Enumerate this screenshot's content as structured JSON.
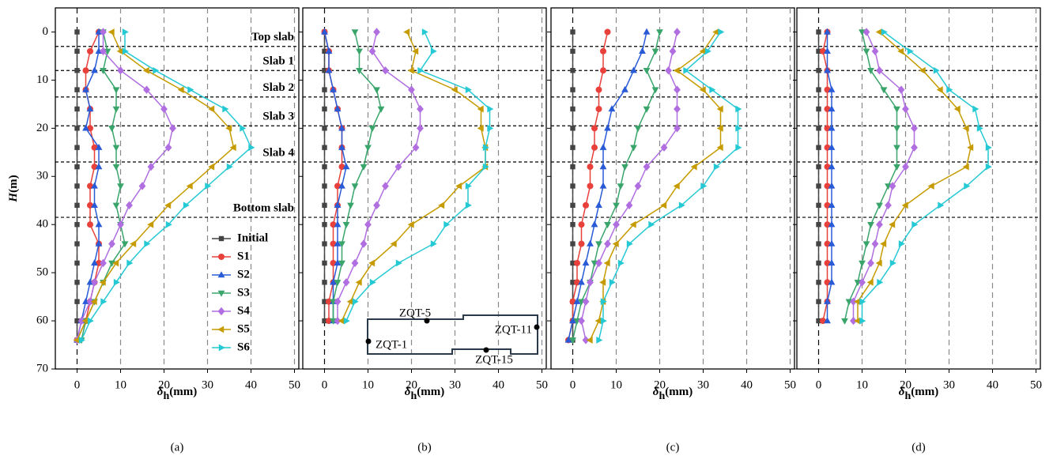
{
  "chart_data": [
    {
      "type": "line",
      "caption": "(a)",
      "x_label": {
        "symbol": "δ",
        "sub": "h",
        "unit": "(mm)"
      },
      "y_label": {
        "symbol": "H",
        "unit": "(m)"
      },
      "xlim": [
        -5,
        51
      ],
      "xticks": [
        0,
        10,
        20,
        30,
        40,
        50
      ],
      "ylim": [
        -5,
        70
      ],
      "yticks": [
        0,
        10,
        20,
        30,
        40,
        50,
        60,
        70
      ],
      "y_inverted": true,
      "ytick_labels": true,
      "grid": true,
      "legend": true,
      "legend_position": "lower left",
      "reference_lines": [
        {
          "value": 3,
          "label": "Top slab"
        },
        {
          "value": 8,
          "label": "Slab 1"
        },
        {
          "value": 13.5,
          "label": "Slab 2"
        },
        {
          "value": 19.5,
          "label": "Slab 3"
        },
        {
          "value": 27,
          "label": "Slab 4"
        },
        {
          "value": 38.5,
          "label": "Bottom slab"
        }
      ],
      "y": [
        0,
        4,
        8,
        12,
        16,
        20,
        24,
        28,
        32,
        36,
        40,
        44,
        48,
        52,
        56,
        60,
        64
      ],
      "series": [
        {
          "name": "Initial",
          "color": "#444444",
          "marker": "square",
          "values": [
            0,
            0,
            0,
            0,
            0,
            0,
            0,
            0,
            0,
            0,
            0,
            0,
            0,
            0,
            0,
            0,
            0
          ]
        },
        {
          "name": "S1",
          "color": "#e8413c",
          "marker": "circle",
          "values": [
            5,
            3,
            2,
            2,
            3,
            3,
            4,
            4,
            3,
            3,
            3,
            5,
            5,
            4,
            3,
            2,
            0
          ]
        },
        {
          "name": "S2",
          "color": "#2a5bd7",
          "marker": "triangle-up",
          "values": [
            5,
            5,
            4,
            2,
            3,
            2,
            5,
            5,
            4,
            4,
            5,
            5,
            4,
            3,
            2,
            1,
            0
          ]
        },
        {
          "name": "S3",
          "color": "#3aa56b",
          "marker": "triangle-down",
          "values": [
            6,
            7,
            6,
            9,
            9,
            8,
            9,
            9,
            10,
            9,
            10,
            11,
            8,
            6,
            4,
            2,
            1
          ]
        },
        {
          "name": "S4",
          "color": "#b06ee0",
          "marker": "diamond",
          "values": [
            6,
            6,
            10,
            16,
            20,
            22,
            21,
            17,
            15,
            12,
            10,
            8,
            6,
            4,
            3,
            1,
            0
          ]
        },
        {
          "name": "S5",
          "color": "#c69b00",
          "marker": "triangle-left",
          "values": [
            8,
            10,
            16,
            24,
            31,
            35,
            36,
            31,
            26,
            21,
            17,
            13,
            9,
            6,
            4,
            2,
            0
          ]
        },
        {
          "name": "S6",
          "color": "#25c9d4",
          "marker": "triangle-right",
          "values": [
            11,
            11,
            18,
            26,
            34,
            38,
            40,
            35,
            30,
            25,
            21,
            16,
            12,
            9,
            6,
            3,
            1
          ]
        }
      ]
    },
    {
      "type": "line",
      "caption": "(b)",
      "x_label": {
        "symbol": "δ",
        "sub": "h",
        "unit": "(mm)"
      },
      "xlim": [
        -5,
        51
      ],
      "xticks": [
        0,
        10,
        20,
        30,
        40,
        50
      ],
      "ylim": [
        -5,
        70
      ],
      "yticks": [
        0,
        10,
        20,
        30,
        40,
        50,
        60,
        70
      ],
      "y_inverted": true,
      "ytick_labels": false,
      "grid": true,
      "legend": false,
      "reference_lines": [
        {
          "value": 3
        },
        {
          "value": 8
        },
        {
          "value": 13.5
        },
        {
          "value": 19.5
        },
        {
          "value": 27
        },
        {
          "value": 38.5
        }
      ],
      "inset_labels": [
        "ZQT-5",
        "ZQT-11",
        "ZQT-1",
        "ZQT-15"
      ],
      "y": [
        0,
        4,
        8,
        12,
        16,
        20,
        24,
        28,
        32,
        36,
        40,
        44,
        48,
        52,
        56,
        60,
        64
      ],
      "series": [
        {
          "name": "Initial",
          "color": "#444444",
          "marker": "square",
          "values": [
            0,
            0,
            0,
            0,
            0,
            0,
            0,
            0,
            0,
            0,
            0,
            0,
            0,
            0,
            0,
            0,
            null
          ]
        },
        {
          "name": "S1",
          "color": "#e8413c",
          "marker": "circle",
          "values": [
            0,
            1,
            1,
            2,
            3,
            4,
            4,
            4,
            3,
            3,
            2,
            2,
            2,
            2,
            1,
            1,
            null
          ]
        },
        {
          "name": "S2",
          "color": "#2a5bd7",
          "marker": "triangle-up",
          "values": [
            0,
            1,
            1,
            2,
            3,
            4,
            4,
            5,
            4,
            3,
            3,
            3,
            3,
            2,
            2,
            2,
            null
          ]
        },
        {
          "name": "S3",
          "color": "#3aa56b",
          "marker": "triangle-down",
          "values": [
            7,
            8,
            8,
            12,
            13,
            11,
            10,
            9,
            7,
            6,
            5,
            4,
            4,
            3,
            2,
            2,
            null
          ]
        },
        {
          "name": "S4",
          "color": "#b06ee0",
          "marker": "diamond",
          "values": [
            12,
            11,
            14,
            20,
            22,
            22,
            21,
            17,
            14,
            12,
            10,
            9,
            7,
            5,
            3,
            3,
            null
          ]
        },
        {
          "name": "S5",
          "color": "#c69b00",
          "marker": "triangle-left",
          "values": [
            19,
            21,
            20,
            30,
            36,
            36,
            37,
            37,
            31,
            27,
            20,
            16,
            11,
            8,
            6,
            4,
            null
          ]
        },
        {
          "name": "S6",
          "color": "#25c9d4",
          "marker": "triangle-right",
          "values": [
            23,
            25,
            22,
            33,
            38,
            38,
            37,
            37,
            33,
            33,
            28,
            25,
            17,
            11,
            7,
            5,
            null
          ]
        }
      ]
    },
    {
      "type": "line",
      "caption": "(c)",
      "x_label": {
        "symbol": "δ",
        "sub": "h",
        "unit": "(mm)"
      },
      "xlim": [
        -5,
        51
      ],
      "xticks": [
        0,
        10,
        20,
        30,
        40,
        50
      ],
      "ylim": [
        -5,
        70
      ],
      "yticks": [
        0,
        10,
        20,
        30,
        40,
        50,
        60,
        70
      ],
      "y_inverted": true,
      "ytick_labels": false,
      "grid": true,
      "legend": false,
      "reference_lines": [
        {
          "value": 3
        },
        {
          "value": 8
        },
        {
          "value": 13.5
        },
        {
          "value": 19.5
        },
        {
          "value": 27
        },
        {
          "value": 38.5
        }
      ],
      "y": [
        0,
        4,
        8,
        12,
        16,
        20,
        24,
        28,
        32,
        36,
        40,
        44,
        48,
        52,
        56,
        60,
        64
      ],
      "series": [
        {
          "name": "Initial",
          "color": "#444444",
          "marker": "square",
          "values": [
            0,
            0,
            0,
            0,
            0,
            0,
            0,
            0,
            0,
            0,
            0,
            0,
            0,
            0,
            0,
            0,
            0
          ]
        },
        {
          "name": "S1",
          "color": "#e8413c",
          "marker": "circle",
          "values": [
            8,
            7,
            7,
            6,
            6,
            5,
            5,
            4,
            4,
            3,
            2,
            2,
            1,
            1,
            0,
            0,
            -1
          ]
        },
        {
          "name": "S2",
          "color": "#2a5bd7",
          "marker": "triangle-up",
          "values": [
            17,
            16,
            14,
            12,
            9,
            8,
            7,
            7,
            7,
            6,
            5,
            4,
            3,
            2,
            1,
            0,
            -1
          ]
        },
        {
          "name": "S3",
          "color": "#3aa56b",
          "marker": "triangle-down",
          "values": [
            20,
            19,
            17,
            19,
            17,
            15,
            14,
            12,
            11,
            10,
            8,
            6,
            5,
            4,
            2,
            1,
            0
          ]
        },
        {
          "name": "S4",
          "color": "#b06ee0",
          "marker": "diamond",
          "values": [
            24,
            23,
            22,
            24,
            24,
            24,
            21,
            17,
            15,
            13,
            10,
            8,
            6,
            4,
            3,
            2,
            3
          ]
        },
        {
          "name": "S5",
          "color": "#c69b00",
          "marker": "triangle-left",
          "values": [
            33,
            30,
            24,
            30,
            34,
            34,
            34,
            28,
            24,
            21,
            14,
            10,
            8,
            7,
            7,
            6,
            4
          ]
        },
        {
          "name": "S6",
          "color": "#25c9d4",
          "marker": "triangle-right",
          "values": [
            34,
            31,
            26,
            32,
            38,
            38,
            38,
            33,
            30,
            25,
            18,
            13,
            11,
            9,
            7,
            7,
            6
          ]
        }
      ]
    },
    {
      "type": "line",
      "caption": "(d)",
      "x_label": {
        "symbol": "δ",
        "sub": "h",
        "unit": "(mm)"
      },
      "xlim": [
        -5,
        51
      ],
      "xticks": [
        0,
        10,
        20,
        30,
        40,
        50
      ],
      "ylim": [
        -5,
        70
      ],
      "yticks": [
        0,
        10,
        20,
        30,
        40,
        50,
        60,
        70
      ],
      "y_inverted": true,
      "ytick_labels": false,
      "grid": true,
      "legend": false,
      "reference_lines": [
        {
          "value": 3
        },
        {
          "value": 8
        },
        {
          "value": 13.5
        },
        {
          "value": 19.5
        },
        {
          "value": 27
        },
        {
          "value": 38.5
        }
      ],
      "y": [
        0,
        4,
        8,
        12,
        16,
        20,
        24,
        28,
        32,
        36,
        40,
        44,
        48,
        52,
        56,
        60,
        64
      ],
      "series": [
        {
          "name": "Initial",
          "color": "#444444",
          "marker": "square",
          "values": [
            0,
            0,
            0,
            0,
            0,
            0,
            0,
            0,
            0,
            0,
            0,
            0,
            0,
            0,
            0,
            0,
            null
          ]
        },
        {
          "name": "S1",
          "color": "#e8413c",
          "marker": "circle",
          "values": [
            2,
            1,
            2,
            2,
            2,
            2,
            2,
            2,
            2,
            2,
            2,
            2,
            2,
            2,
            2,
            1,
            null
          ]
        },
        {
          "name": "S2",
          "color": "#2a5bd7",
          "marker": "triangle-up",
          "values": [
            2,
            2,
            2,
            3,
            3,
            3,
            3,
            3,
            3,
            3,
            3,
            3,
            3,
            3,
            2,
            2,
            null
          ]
        },
        {
          "name": "S3",
          "color": "#3aa56b",
          "marker": "triangle-down",
          "values": [
            10,
            11,
            12,
            15,
            18,
            18,
            18,
            18,
            16,
            14,
            12,
            11,
            10,
            9,
            7,
            6,
            null
          ]
        },
        {
          "name": "S4",
          "color": "#b06ee0",
          "marker": "diamond",
          "values": [
            11,
            13,
            14,
            19,
            20,
            22,
            22,
            20,
            17,
            16,
            14,
            13,
            12,
            10,
            8,
            8,
            null
          ]
        },
        {
          "name": "S5",
          "color": "#c69b00",
          "marker": "triangle-left",
          "values": [
            14,
            19,
            24,
            28,
            32,
            34,
            35,
            34,
            26,
            20,
            17,
            15,
            14,
            12,
            9,
            9,
            null
          ]
        },
        {
          "name": "S6",
          "color": "#25c9d4",
          "marker": "triangle-right",
          "values": [
            15,
            21,
            27,
            30,
            36,
            37,
            39,
            39,
            34,
            28,
            22,
            19,
            17,
            14,
            10,
            10,
            null
          ]
        }
      ]
    }
  ]
}
